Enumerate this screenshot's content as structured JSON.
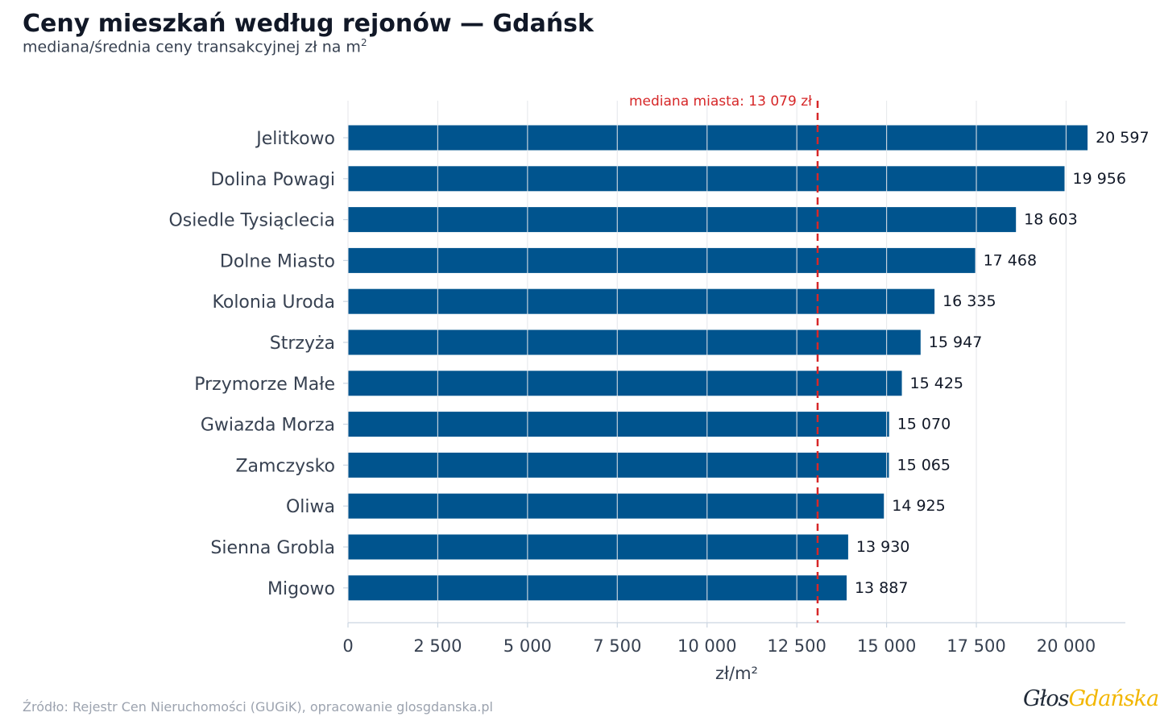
{
  "header": {
    "title": "Ceny mieszkań według rejonów — Gdańsk",
    "subtitle": "mediana/średnia ceny transakcyjnej zł na m",
    "subtitle_sup": "2"
  },
  "footer": {
    "source": "Źródło: Rejestr Cen Nieruchomości (GUGiK), opracowanie glosgdanska.pl",
    "logo_part1": "Głos",
    "logo_part2": "Gdańska"
  },
  "colors": {
    "bar": "#00548e",
    "median_line": "#d62728",
    "grid": "#e5e7eb",
    "axis": "#cbd5e1",
    "tick_text": "#374151",
    "value_text": "#111827"
  },
  "chart_data": {
    "type": "bar",
    "orientation": "horizontal",
    "categories": [
      "Jelitkowo",
      "Dolina Powagi",
      "Osiedle Tysiąclecia",
      "Dolne Miasto",
      "Kolonia Uroda",
      "Strzyża",
      "Przymorze Małe",
      "Gwiazda Morza",
      "Zamczysko",
      "Oliwa",
      "Sienna Grobla",
      "Migowo"
    ],
    "values": [
      20597,
      19956,
      18603,
      17468,
      16335,
      15947,
      15425,
      15070,
      15065,
      14925,
      13930,
      13887
    ],
    "value_labels": [
      "20 597",
      "19 956",
      "18 603",
      "17 468",
      "16 335",
      "15 947",
      "15 425",
      "15 070",
      "15 065",
      "14 925",
      "13 930",
      "13 887"
    ],
    "xlabel": "zł/m²",
    "xlim": [
      0,
      21650
    ],
    "xticks": [
      0,
      2500,
      5000,
      7500,
      10000,
      12500,
      15000,
      17500,
      20000
    ],
    "xtick_labels": [
      "0",
      "2 500",
      "5 000",
      "7 500",
      "10 000",
      "12 500",
      "15 000",
      "17 500",
      "20 000"
    ],
    "grid": true,
    "reference_line": {
      "value": 13079,
      "label": "mediana miasta: 13 079 zł",
      "style": "dashed"
    }
  }
}
